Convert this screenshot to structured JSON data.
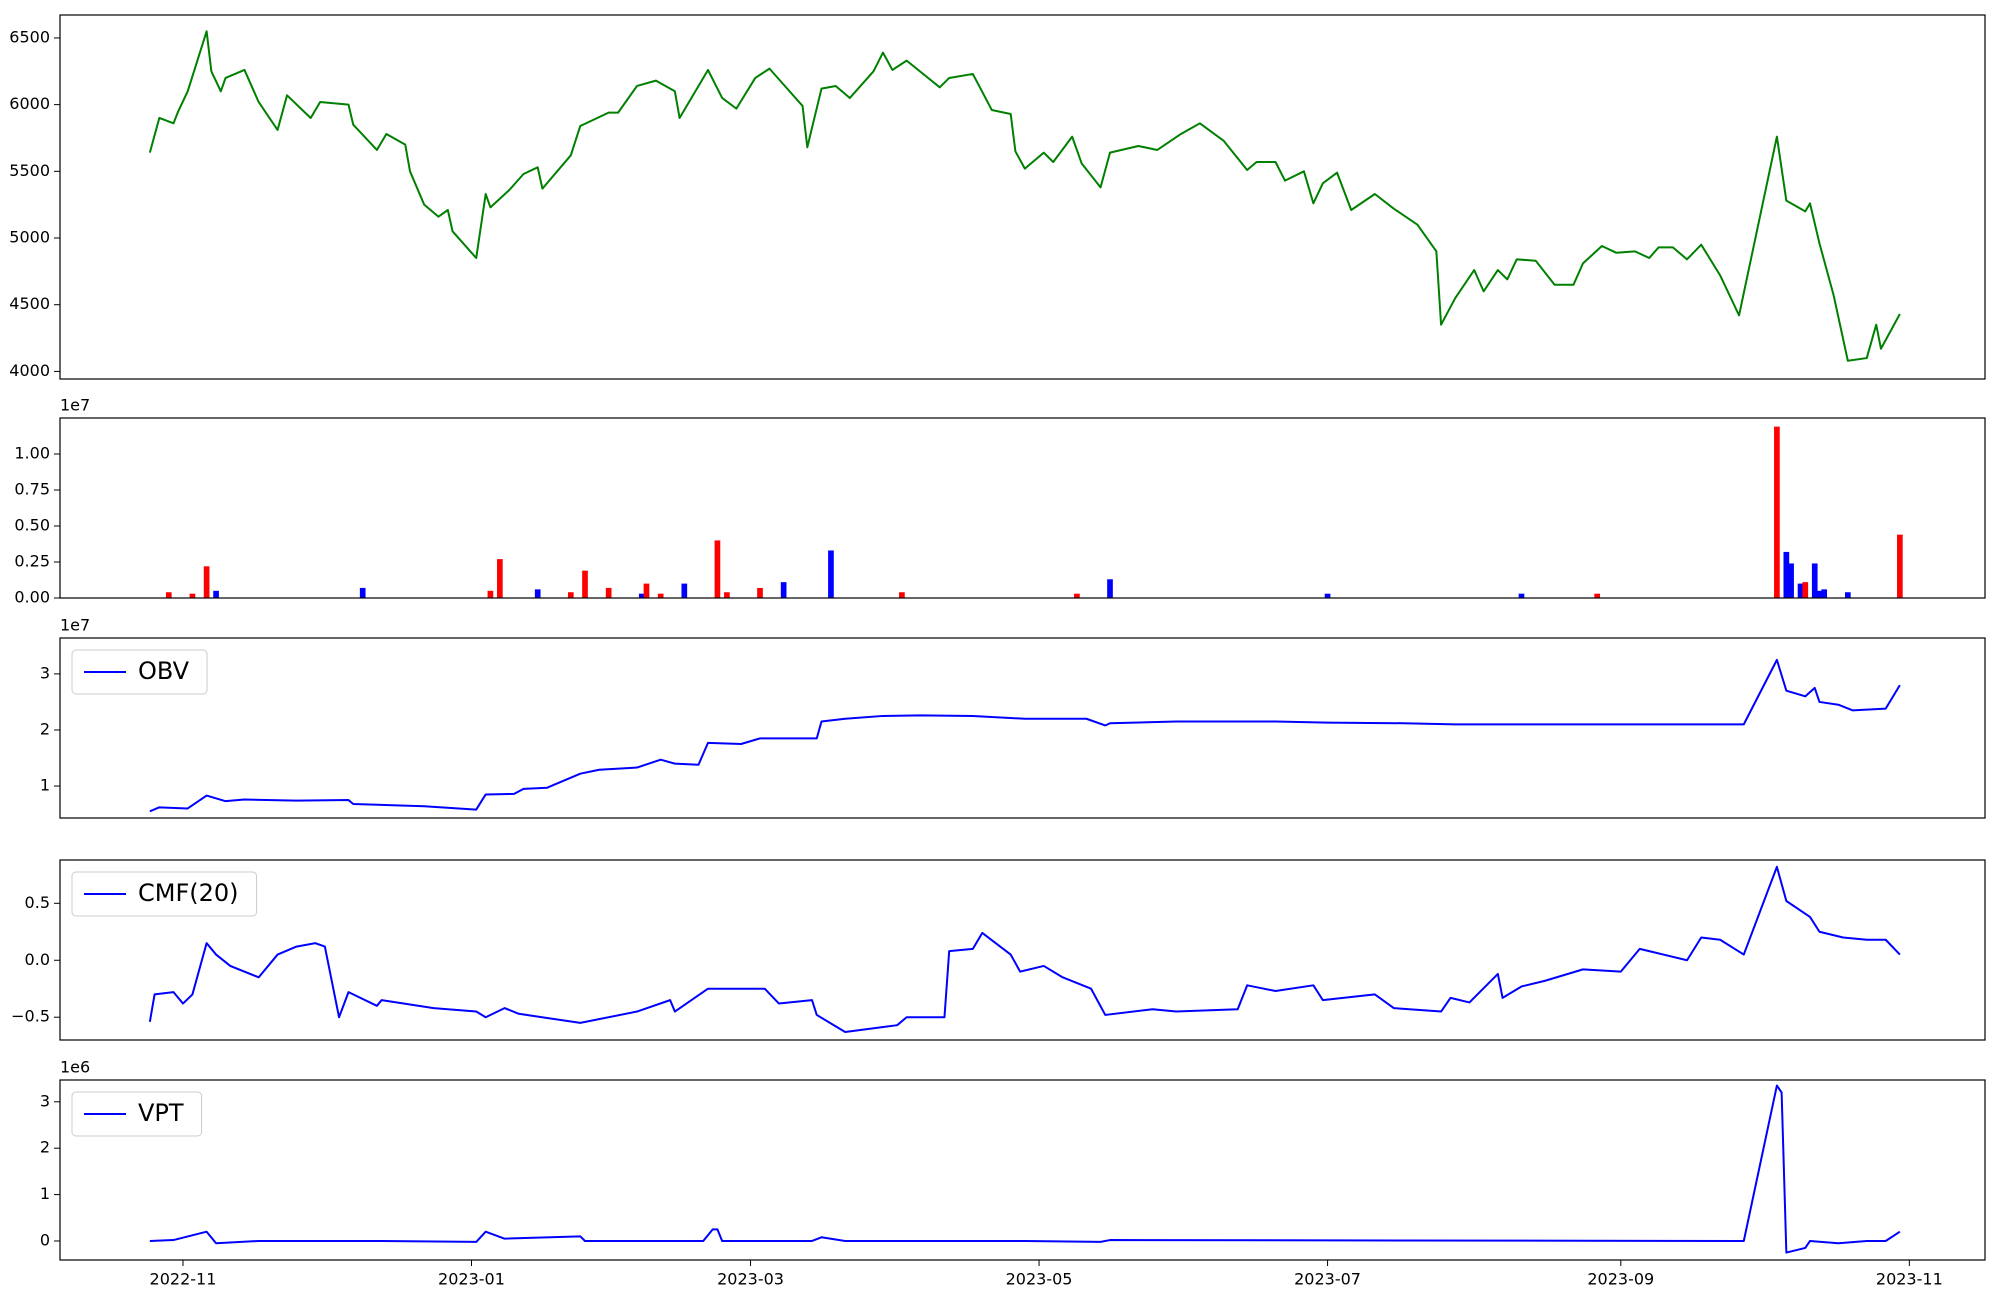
{
  "chart_data": [
    {
      "type": "line",
      "xlim": [
        "2022-10-06",
        "2023-11-17"
      ],
      "ylim": [
        3943,
        6672
      ],
      "yticks": [
        4000,
        4500,
        5000,
        5500,
        6000,
        6500
      ],
      "x": [
        "2022-10-25",
        "2022-10-27",
        "2022-10-30",
        "2022-10-31",
        "2022-11-02",
        "2022-11-06",
        "2022-11-07",
        "2022-11-09",
        "2022-11-10",
        "2022-11-14",
        "2022-11-17",
        "2022-11-21",
        "2022-11-23",
        "2022-11-28",
        "2022-11-30",
        "2022-12-06",
        "2022-12-07",
        "2022-12-12",
        "2022-12-14",
        "2022-12-18",
        "2022-12-19",
        "2022-12-22",
        "2022-12-25",
        "2022-12-27",
        "2022-12-28",
        "2023-01-02",
        "2023-01-04",
        "2023-01-05",
        "2023-01-09",
        "2023-01-12",
        "2023-01-15",
        "2023-01-16",
        "2023-01-22",
        "2023-01-24",
        "2023-01-30",
        "2023-02-01",
        "2023-02-05",
        "2023-02-09",
        "2023-02-13",
        "2023-02-14",
        "2023-02-20",
        "2023-02-23",
        "2023-02-26",
        "2023-03-02",
        "2023-03-05",
        "2023-03-08",
        "2023-03-12",
        "2023-03-13",
        "2023-03-16",
        "2023-03-19",
        "2023-03-22",
        "2023-03-27",
        "2023-03-29",
        "2023-03-31",
        "2023-04-03",
        "2023-04-10",
        "2023-04-12",
        "2023-04-17",
        "2023-04-21",
        "2023-04-25",
        "2023-04-26",
        "2023-04-28",
        "2023-05-02",
        "2023-05-04",
        "2023-05-08",
        "2023-05-10",
        "2023-05-14",
        "2023-05-16",
        "2023-05-22",
        "2023-05-26",
        "2023-05-31",
        "2023-06-04",
        "2023-06-09",
        "2023-06-14",
        "2023-06-16",
        "2023-06-20",
        "2023-06-22",
        "2023-06-26",
        "2023-06-28",
        "2023-06-30",
        "2023-07-03",
        "2023-07-06",
        "2023-07-11",
        "2023-07-15",
        "2023-07-20",
        "2023-07-24",
        "2023-07-25",
        "2023-07-28",
        "2023-08-01",
        "2023-08-03",
        "2023-08-06",
        "2023-08-08",
        "2023-08-10",
        "2023-08-14",
        "2023-08-18",
        "2023-08-22",
        "2023-08-24",
        "2023-08-28",
        "2023-08-31",
        "2023-09-04",
        "2023-09-07",
        "2023-09-09",
        "2023-09-12",
        "2023-09-15",
        "2023-09-18",
        "2023-09-22",
        "2023-09-26",
        "2023-10-04",
        "2023-10-06",
        "2023-10-10",
        "2023-10-11",
        "2023-10-13",
        "2023-10-16",
        "2023-10-19",
        "2023-10-23",
        "2023-10-25",
        "2023-10-26",
        "2023-10-30"
      ],
      "series": [
        {
          "color": "#008000",
          "values": [
            5640,
            5900,
            5860,
            5950,
            6100,
            6550,
            6250,
            6100,
            6200,
            6260,
            6020,
            5810,
            6070,
            5900,
            6020,
            6000,
            5850,
            5660,
            5780,
            5700,
            5500,
            5250,
            5160,
            5210,
            5050,
            4850,
            5330,
            5230,
            5360,
            5480,
            5530,
            5370,
            5620,
            5840,
            5940,
            5940,
            6140,
            6180,
            6100,
            5900,
            6260,
            6050,
            5970,
            6200,
            6270,
            6150,
            5990,
            5680,
            6120,
            6140,
            6050,
            6250,
            6390,
            6260,
            6330,
            6130,
            6200,
            6230,
            5960,
            5930,
            5650,
            5520,
            5640,
            5570,
            5760,
            5560,
            5380,
            5640,
            5690,
            5660,
            5780,
            5860,
            5730,
            5510,
            5570,
            5570,
            5430,
            5500,
            5260,
            5410,
            5490,
            5210,
            5330,
            5220,
            5100,
            4900,
            4350,
            4550,
            4760,
            4600,
            4760,
            4690,
            4840,
            4830,
            4650,
            4650,
            4810,
            4940,
            4890,
            4900,
            4850,
            4930,
            4930,
            4840,
            4950,
            4720,
            4420,
            5760,
            5280,
            5200,
            5260,
            4960,
            4570,
            4080,
            4100,
            4350,
            4170,
            4430
          ]
        }
      ]
    },
    {
      "type": "bar",
      "xlim": [
        "2022-10-06",
        "2023-11-17"
      ],
      "offset_label": "1e7",
      "ylim": [
        0,
        1.25
      ],
      "yticks": [
        {
          "value": 0,
          "label": "0.00"
        },
        {
          "value": 0.25,
          "label": "0.25"
        },
        {
          "value": 0.5,
          "label": "0.50"
        },
        {
          "value": 0.75,
          "label": "0.75"
        },
        {
          "value": 1,
          "label": "1.00"
        }
      ],
      "x": [
        "2022-10-29",
        "2022-11-03",
        "2022-11-06",
        "2022-11-08",
        "2022-12-09",
        "2023-01-05",
        "2023-01-07",
        "2023-01-15",
        "2023-01-22",
        "2023-01-25",
        "2023-01-30",
        "2023-02-06",
        "2023-02-07",
        "2023-02-10",
        "2023-02-15",
        "2023-02-22",
        "2023-02-24",
        "2023-03-03",
        "2023-03-08",
        "2023-03-18",
        "2023-04-02",
        "2023-05-09",
        "2023-05-16",
        "2023-07-01",
        "2023-08-11",
        "2023-08-27",
        "2023-10-04",
        "2023-10-06",
        "2023-10-07",
        "2023-10-09",
        "2023-10-10",
        "2023-10-12",
        "2023-10-13",
        "2023-10-14",
        "2023-10-19",
        "2023-10-30"
      ],
      "values": [
        0.04,
        0.03,
        0.22,
        0.05,
        0.07,
        0.05,
        0.27,
        0.06,
        0.04,
        0.19,
        0.07,
        0.03,
        0.1,
        0.03,
        0.1,
        0.4,
        0.04,
        0.07,
        0.11,
        0.33,
        0.04,
        0.03,
        0.13,
        0.03,
        0.03,
        0.03,
        1.19,
        0.32,
        0.24,
        0.1,
        0.11,
        0.24,
        0.05,
        0.06,
        0.04,
        0.44
      ],
      "colors": [
        "#ff0000",
        "#ff0000",
        "#ff0000",
        "#0000ff",
        "#0000ff",
        "#ff0000",
        "#ff0000",
        "#0000ff",
        "#ff0000",
        "#ff0000",
        "#ff0000",
        "#0000ff",
        "#ff0000",
        "#ff0000",
        "#0000ff",
        "#ff0000",
        "#ff0000",
        "#ff0000",
        "#0000ff",
        "#0000ff",
        "#ff0000",
        "#ff0000",
        "#0000ff",
        "#0000ff",
        "#0000ff",
        "#ff0000",
        "#ff0000",
        "#0000ff",
        "#0000ff",
        "#0000ff",
        "#ff0000",
        "#0000ff",
        "#0000ff",
        "#0000ff",
        "#0000ff",
        "#ff0000"
      ]
    },
    {
      "type": "line",
      "xlim": [
        "2022-10-06",
        "2023-11-17"
      ],
      "offset_label": "1e7",
      "legend": "upper left",
      "ylim": [
        0.43,
        3.64
      ],
      "yticks": [
        1,
        2,
        3
      ],
      "x": [
        "2022-10-25",
        "2022-10-27",
        "2022-11-02",
        "2022-11-06",
        "2022-11-10",
        "2022-11-14",
        "2022-11-25",
        "2022-12-06",
        "2022-12-07",
        "2022-12-22",
        "2023-01-02",
        "2023-01-04",
        "2023-01-10",
        "2023-01-12",
        "2023-01-17",
        "2023-01-24",
        "2023-01-28",
        "2023-02-05",
        "2023-02-10",
        "2023-02-13",
        "2023-02-18",
        "2023-02-20",
        "2023-02-27",
        "2023-03-03",
        "2023-03-07",
        "2023-03-15",
        "2023-03-16",
        "2023-03-21",
        "2023-03-29",
        "2023-04-06",
        "2023-04-17",
        "2023-04-28",
        "2023-05-11",
        "2023-05-15",
        "2023-05-16",
        "2023-05-30",
        "2023-06-20",
        "2023-07-01",
        "2023-07-17",
        "2023-07-28",
        "2023-08-12",
        "2023-09-09",
        "2023-09-27",
        "2023-10-04",
        "2023-10-06",
        "2023-10-10",
        "2023-10-12",
        "2023-10-13",
        "2023-10-17",
        "2023-10-20",
        "2023-10-27",
        "2023-10-30"
      ],
      "series": [
        {
          "name": "OBV",
          "color": "#0000ff",
          "values": [
            0.55,
            0.62,
            0.6,
            0.83,
            0.73,
            0.76,
            0.74,
            0.75,
            0.68,
            0.64,
            0.58,
            0.85,
            0.86,
            0.95,
            0.97,
            1.22,
            1.29,
            1.33,
            1.47,
            1.4,
            1.38,
            1.77,
            1.75,
            1.85,
            1.85,
            1.85,
            2.15,
            2.2,
            2.25,
            2.26,
            2.25,
            2.2,
            2.2,
            2.08,
            2.12,
            2.15,
            2.15,
            2.13,
            2.12,
            2.1,
            2.1,
            2.1,
            2.1,
            3.25,
            2.7,
            2.6,
            2.75,
            2.5,
            2.45,
            2.35,
            2.38,
            2.8
          ]
        }
      ]
    },
    {
      "type": "line",
      "xlim": [
        "2022-10-06",
        "2023-11-17"
      ],
      "legend": "upper left",
      "ylim": [
        -0.7,
        0.88
      ],
      "yticks": [
        {
          "value": -0.5,
          "label": "−0.5"
        },
        {
          "value": 0,
          "label": "0.0"
        },
        0.5
      ],
      "x": [
        "2022-10-25",
        "2022-10-26",
        "2022-10-30",
        "2022-11-01",
        "2022-11-03",
        "2022-11-06",
        "2022-11-08",
        "2022-11-11",
        "2022-11-17",
        "2022-11-21",
        "2022-11-25",
        "2022-11-29",
        "2022-12-01",
        "2022-12-04",
        "2022-12-06",
        "2022-12-12",
        "2022-12-13",
        "2022-12-24",
        "2023-01-02",
        "2023-01-04",
        "2023-01-08",
        "2023-01-11",
        "2023-01-24",
        "2023-02-05",
        "2023-02-12",
        "2023-02-13",
        "2023-02-20",
        "2023-03-04",
        "2023-03-07",
        "2023-03-14",
        "2023-03-15",
        "2023-03-21",
        "2023-04-01",
        "2023-04-03",
        "2023-04-11",
        "2023-04-12",
        "2023-04-17",
        "2023-04-19",
        "2023-04-25",
        "2023-04-27",
        "2023-05-02",
        "2023-05-06",
        "2023-05-12",
        "2023-05-15",
        "2023-05-25",
        "2023-05-30",
        "2023-06-12",
        "2023-06-14",
        "2023-06-20",
        "2023-06-28",
        "2023-06-30",
        "2023-07-11",
        "2023-07-15",
        "2023-07-25",
        "2023-07-27",
        "2023-07-31",
        "2023-08-06",
        "2023-08-07",
        "2023-08-11",
        "2023-08-16",
        "2023-08-24",
        "2023-09-01",
        "2023-09-05",
        "2023-09-10",
        "2023-09-15",
        "2023-09-18",
        "2023-09-22",
        "2023-09-27",
        "2023-10-04",
        "2023-10-06",
        "2023-10-11",
        "2023-10-13",
        "2023-10-18",
        "2023-10-23",
        "2023-10-27",
        "2023-10-30"
      ],
      "series": [
        {
          "name": "CMF(20)",
          "color": "#0000ff",
          "values": [
            -0.54,
            -0.3,
            -0.28,
            -0.38,
            -0.3,
            0.15,
            0.05,
            -0.05,
            -0.15,
            0.05,
            0.12,
            0.15,
            0.12,
            -0.5,
            -0.28,
            -0.4,
            -0.35,
            -0.42,
            -0.45,
            -0.5,
            -0.42,
            -0.47,
            -0.55,
            -0.45,
            -0.35,
            -0.45,
            -0.25,
            -0.25,
            -0.38,
            -0.35,
            -0.48,
            -0.63,
            -0.57,
            -0.5,
            -0.5,
            0.08,
            0.1,
            0.24,
            0.05,
            -0.1,
            -0.05,
            -0.15,
            -0.25,
            -0.48,
            -0.43,
            -0.45,
            -0.43,
            -0.22,
            -0.27,
            -0.22,
            -0.35,
            -0.3,
            -0.42,
            -0.45,
            -0.33,
            -0.37,
            -0.12,
            -0.33,
            -0.23,
            -0.18,
            -0.08,
            -0.1,
            0.1,
            0.05,
            0.0,
            0.2,
            0.18,
            0.05,
            0.82,
            0.52,
            0.38,
            0.25,
            0.2,
            0.18,
            0.18,
            0.05
          ]
        }
      ]
    },
    {
      "type": "line",
      "xlim": [
        "2022-10-06",
        "2023-11-17"
      ],
      "offset_label": "1e6",
      "legend": "upper left",
      "ylim": [
        -0.41,
        3.47
      ],
      "yticks": [
        0,
        1,
        2,
        3
      ],
      "xticks": [
        {
          "value": "2022-11-01",
          "label": "2022-11"
        },
        {
          "value": "2023-01-01",
          "label": "2023-01"
        },
        {
          "value": "2023-03-01",
          "label": "2023-03"
        },
        {
          "value": "2023-05-01",
          "label": "2023-05"
        },
        {
          "value": "2023-07-01",
          "label": "2023-07"
        },
        {
          "value": "2023-09-01",
          "label": "2023-09"
        },
        {
          "value": "2023-11-01",
          "label": "2023-11"
        }
      ],
      "x": [
        "2022-10-25",
        "2022-10-30",
        "2022-11-06",
        "2022-11-08",
        "2022-11-17",
        "2022-12-13",
        "2023-01-02",
        "2023-01-04",
        "2023-01-08",
        "2023-01-24",
        "2023-01-25",
        "2023-02-19",
        "2023-02-21",
        "2023-02-22",
        "2023-02-23",
        "2023-03-14",
        "2023-03-16",
        "2023-03-21",
        "2023-04-28",
        "2023-05-14",
        "2023-05-16",
        "2023-09-27",
        "2023-10-04",
        "2023-10-05",
        "2023-10-06",
        "2023-10-10",
        "2023-10-11",
        "2023-10-17",
        "2023-10-23",
        "2023-10-27",
        "2023-10-30"
      ],
      "series": [
        {
          "name": "VPT",
          "color": "#0000ff",
          "values": [
            0,
            0.02,
            0.2,
            -0.05,
            0,
            0,
            -0.02,
            0.2,
            0.05,
            0.1,
            0,
            0,
            0.25,
            0.25,
            0,
            0,
            0.08,
            0,
            0,
            -0.02,
            0.02,
            0,
            3.35,
            3.2,
            -0.25,
            -0.15,
            0,
            -0.05,
            0,
            0,
            0.2
          ]
        }
      ]
    }
  ]
}
